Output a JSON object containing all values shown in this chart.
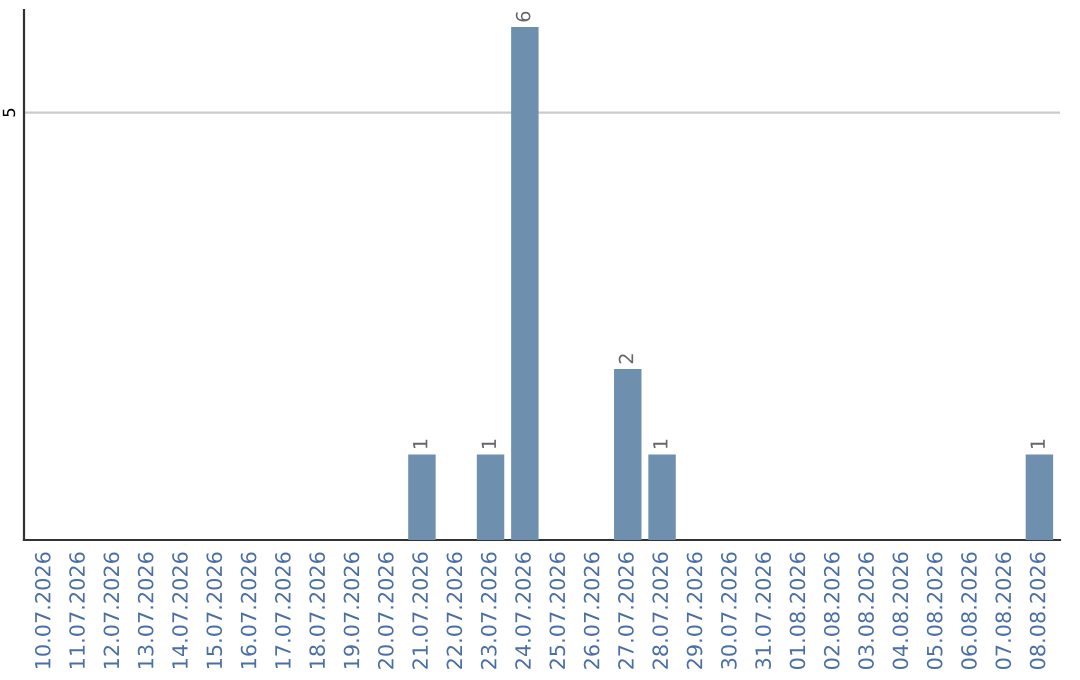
{
  "chart_data": {
    "type": "bar",
    "categories": [
      "10.07.2026",
      "11.07.2026",
      "12.07.2026",
      "13.07.2026",
      "14.07.2026",
      "15.07.2026",
      "16.07.2026",
      "17.07.2026",
      "18.07.2026",
      "19.07.2026",
      "20.07.2026",
      "21.07.2026",
      "22.07.2026",
      "23.07.2026",
      "24.07.2026",
      "25.07.2026",
      "26.07.2026",
      "27.07.2026",
      "28.07.2026",
      "29.07.2026",
      "30.07.2026",
      "31.07.2026",
      "01.08.2026",
      "02.08.2026",
      "03.08.2026",
      "04.08.2026",
      "05.08.2026",
      "06.08.2026",
      "07.08.2026",
      "08.08.2026"
    ],
    "values": [
      0,
      0,
      0,
      0,
      0,
      0,
      0,
      0,
      0,
      0,
      0,
      1,
      0,
      1,
      6,
      0,
      0,
      2,
      1,
      0,
      0,
      0,
      0,
      0,
      0,
      0,
      0,
      0,
      0,
      1
    ],
    "value_labels": [
      null,
      null,
      null,
      null,
      null,
      null,
      null,
      null,
      null,
      null,
      null,
      "1",
      null,
      "1",
      "6",
      null,
      null,
      "2",
      "1",
      null,
      null,
      null,
      null,
      null,
      null,
      null,
      null,
      null,
      null,
      "1"
    ],
    "color": "#6f8fae",
    "ylim": [
      0,
      6.2
    ],
    "yticks": [
      5
    ],
    "grid": "y",
    "legend": false
  }
}
